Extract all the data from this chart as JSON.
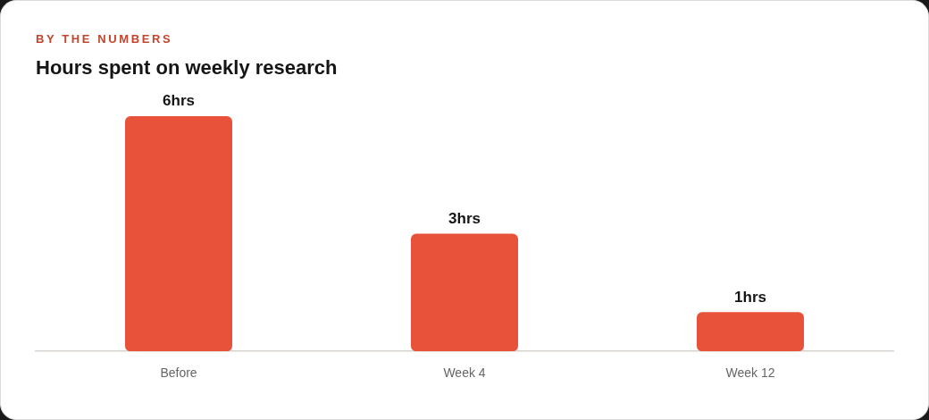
{
  "chart_data": {
    "type": "bar",
    "subtitle": "BY THE NUMBERS",
    "title": "Hours spent on weekly research",
    "categories": [
      "Before",
      "Week 4",
      "Week 12"
    ],
    "values": [
      6,
      3,
      1
    ],
    "value_labels": [
      "6hrs",
      "3hrs",
      "1hrs"
    ],
    "color": "#e8523a"
  }
}
